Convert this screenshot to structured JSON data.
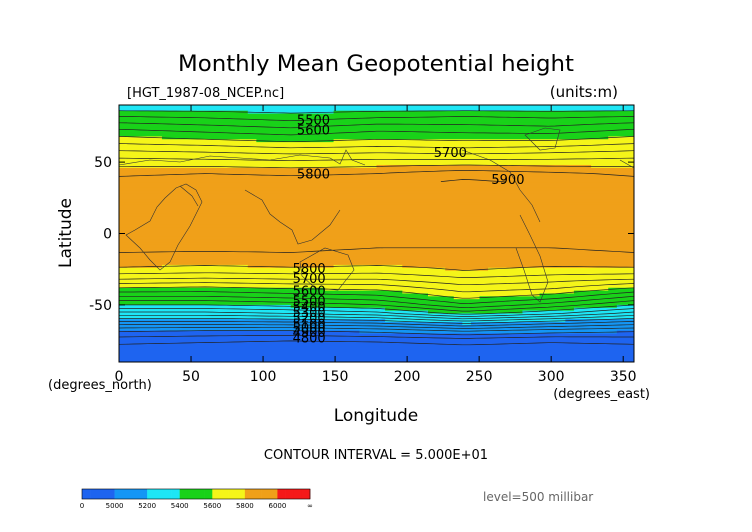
{
  "chart_data": {
    "type": "contour",
    "title": "Monthly Mean Geopotential height",
    "file_label": "[HGT_1987-08_NCEP.nc]",
    "units_label": "(units:m)",
    "xlabel": "Longitude",
    "ylabel": "Latitude",
    "x_unit_label": "(degrees_east)",
    "y_unit_label": "(degrees_north)",
    "xlim": [
      0,
      357.5
    ],
    "ylim": [
      -90,
      90
    ],
    "x_ticks": [
      0,
      50,
      100,
      150,
      200,
      250,
      300,
      350
    ],
    "y_ticks": [
      -50,
      0,
      50
    ],
    "contour_interval_text": "CONTOUR INTERVAL = 5.000E+01",
    "level_text": "level=500 millibar",
    "color_bands": [
      {
        "from": 4800,
        "to": 5000,
        "color": "#1e64f0"
      },
      {
        "from": 5000,
        "to": 5200,
        "color": "#1496f5"
      },
      {
        "from": 5200,
        "to": 5400,
        "color": "#1ee6f5"
      },
      {
        "from": 5400,
        "to": 5600,
        "color": "#19d219"
      },
      {
        "from": 5600,
        "to": 5800,
        "color": "#f5f519"
      },
      {
        "from": 5800,
        "to": 6000,
        "color": "#f0a019"
      },
      {
        "from": 6000,
        "to": 6200,
        "color": "#f51919"
      }
    ],
    "colorbar_ticks": [
      "0",
      "5000",
      "5200",
      "5400",
      "5600",
      "5800",
      "6000",
      "∞"
    ],
    "contour_labels": [
      {
        "text": "5500",
        "lon": 135,
        "lat": 80
      },
      {
        "text": "5600",
        "lon": 135,
        "lat": 73
      },
      {
        "text": "5700",
        "lon": 230,
        "lat": 57
      },
      {
        "text": "5800",
        "lon": 135,
        "lat": 42
      },
      {
        "text": "5900",
        "lon": 270,
        "lat": 38
      },
      {
        "text": "5800",
        "lon": 132,
        "lat": -24
      },
      {
        "text": "5700",
        "lon": 132,
        "lat": -31
      },
      {
        "text": "5600",
        "lon": 132,
        "lat": -40
      },
      {
        "text": "5500",
        "lon": 132,
        "lat": -47
      },
      {
        "text": "5400",
        "lon": 132,
        "lat": -51
      },
      {
        "text": "5300",
        "lon": 132,
        "lat": -55
      },
      {
        "text": "5200",
        "lon": 132,
        "lat": -59
      },
      {
        "text": "5100",
        "lon": 132,
        "lat": -63
      },
      {
        "text": "5000",
        "lon": 132,
        "lat": -66
      },
      {
        "text": "4900",
        "lon": 132,
        "lat": -69
      },
      {
        "text": "4800",
        "lon": 132,
        "lat": -73
      }
    ],
    "profile": {
      "lat": [
        90,
        82,
        74,
        66,
        60,
        54,
        48,
        42,
        36,
        30,
        22,
        10,
        0,
        -10,
        -20,
        -26,
        -32,
        -38,
        -44,
        -50,
        -56,
        -62,
        -68,
        -74,
        -80,
        -90
      ],
      "lon": [
        0,
        60,
        120,
        180,
        240,
        300,
        357.5
      ],
      "values_m": [
        [
          5350,
          5350,
          5350,
          5350,
          5350,
          5350,
          5350
        ],
        [
          5450,
          5440,
          5420,
          5440,
          5450,
          5440,
          5450
        ],
        [
          5540,
          5520,
          5500,
          5530,
          5520,
          5510,
          5540
        ],
        [
          5620,
          5600,
          5580,
          5600,
          5590,
          5590,
          5620
        ],
        [
          5680,
          5670,
          5650,
          5660,
          5650,
          5660,
          5680
        ],
        [
          5740,
          5730,
          5720,
          5730,
          5720,
          5730,
          5740
        ],
        [
          5790,
          5790,
          5780,
          5790,
          5800,
          5790,
          5790
        ],
        [
          5840,
          5850,
          5840,
          5850,
          5880,
          5860,
          5840
        ],
        [
          5870,
          5880,
          5880,
          5880,
          5910,
          5890,
          5870
        ],
        [
          5880,
          5890,
          5890,
          5880,
          5900,
          5890,
          5880
        ],
        [
          5880,
          5890,
          5890,
          5880,
          5880,
          5880,
          5880
        ],
        [
          5880,
          5880,
          5880,
          5870,
          5870,
          5870,
          5880
        ],
        [
          5870,
          5870,
          5870,
          5860,
          5860,
          5860,
          5870
        ],
        [
          5860,
          5860,
          5860,
          5850,
          5850,
          5850,
          5860
        ],
        [
          5830,
          5820,
          5830,
          5820,
          5830,
          5820,
          5830
        ],
        [
          5780,
          5770,
          5780,
          5770,
          5800,
          5780,
          5780
        ],
        [
          5700,
          5690,
          5700,
          5700,
          5740,
          5720,
          5700
        ],
        [
          5600,
          5590,
          5610,
          5620,
          5680,
          5660,
          5600
        ],
        [
          5500,
          5500,
          5520,
          5540,
          5620,
          5580,
          5500
        ],
        [
          5400,
          5400,
          5420,
          5450,
          5540,
          5480,
          5400
        ],
        [
          5280,
          5280,
          5300,
          5330,
          5420,
          5360,
          5280
        ],
        [
          5140,
          5140,
          5150,
          5170,
          5230,
          5180,
          5140
        ],
        [
          5010,
          5000,
          5000,
          5020,
          5060,
          5030,
          5010
        ],
        [
          4930,
          4920,
          4910,
          4920,
          4940,
          4920,
          4930
        ],
        [
          4880,
          4870,
          4860,
          4860,
          4880,
          4870,
          4880
        ],
        [
          4850,
          4850,
          4850,
          4850,
          4850,
          4850,
          4850
        ]
      ]
    }
  }
}
